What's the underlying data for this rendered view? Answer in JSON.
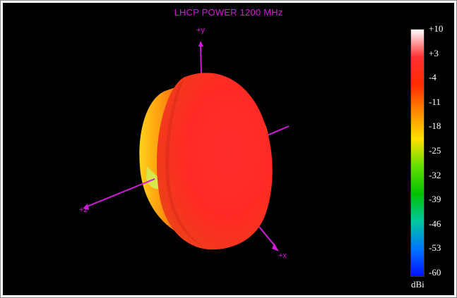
{
  "title": "LHCP POWER 1200  MHz",
  "axes": {
    "y_label": "+y",
    "z_label": "+z",
    "x_label": "+x",
    "color": "#d01bd8"
  },
  "colorbar": {
    "ticks": [
      "+10",
      "+3",
      "-4",
      "-11",
      "-18",
      "-25",
      "-32",
      "-39",
      "-46",
      "-53",
      "-60"
    ],
    "unit": "dBi",
    "gradient": [
      "#ffffff",
      "#ff3030",
      "#ff2a00",
      "#ff8a00",
      "#ffe000",
      "#60e000",
      "#00c000",
      "#00c8a0",
      "#0078ff",
      "#0010ff"
    ]
  }
}
